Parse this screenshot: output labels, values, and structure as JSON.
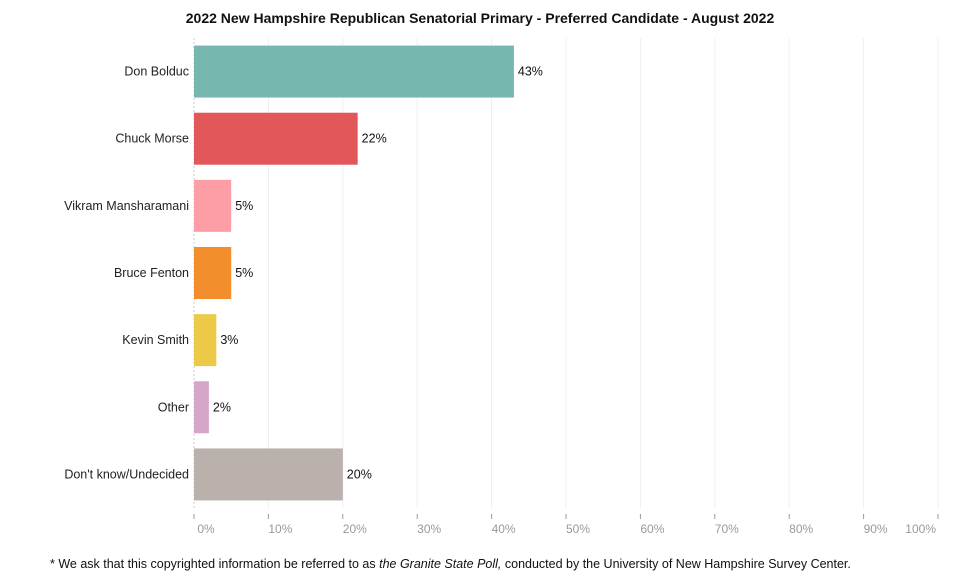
{
  "chart_data": {
    "type": "bar",
    "orientation": "horizontal",
    "title": "2022 New Hampshire Republican Senatorial Primary - Preferred Candidate - August 2022",
    "categories": [
      "Don Bolduc",
      "Chuck Morse",
      "Vikram Mansharamani",
      "Bruce Fenton",
      "Kevin Smith",
      "Other",
      "Don't know/Undecided"
    ],
    "values": [
      43,
      22,
      5,
      5,
      3,
      2,
      20
    ],
    "data_labels": [
      "43%",
      "22%",
      "5%",
      "5%",
      "3%",
      "2%",
      "20%"
    ],
    "colors": [
      "#78b6b0",
      "#e1575a",
      "#fd9ea6",
      "#f28e2b",
      "#edc948",
      "#d4a6c8",
      "#bab0ac"
    ],
    "xlim": [
      0,
      100
    ],
    "x_ticks": [
      "0%",
      "10%",
      "20%",
      "30%",
      "40%",
      "50%",
      "60%",
      "70%",
      "80%",
      "90%",
      "100%"
    ],
    "xlabel": "",
    "ylabel": "",
    "grid": true
  },
  "footnote": {
    "prefix": "* We ask that this copyrighted information be referred to as ",
    "italic": "the Granite State Poll,",
    "suffix": " conducted by the University of New Hampshire Survey Center."
  }
}
